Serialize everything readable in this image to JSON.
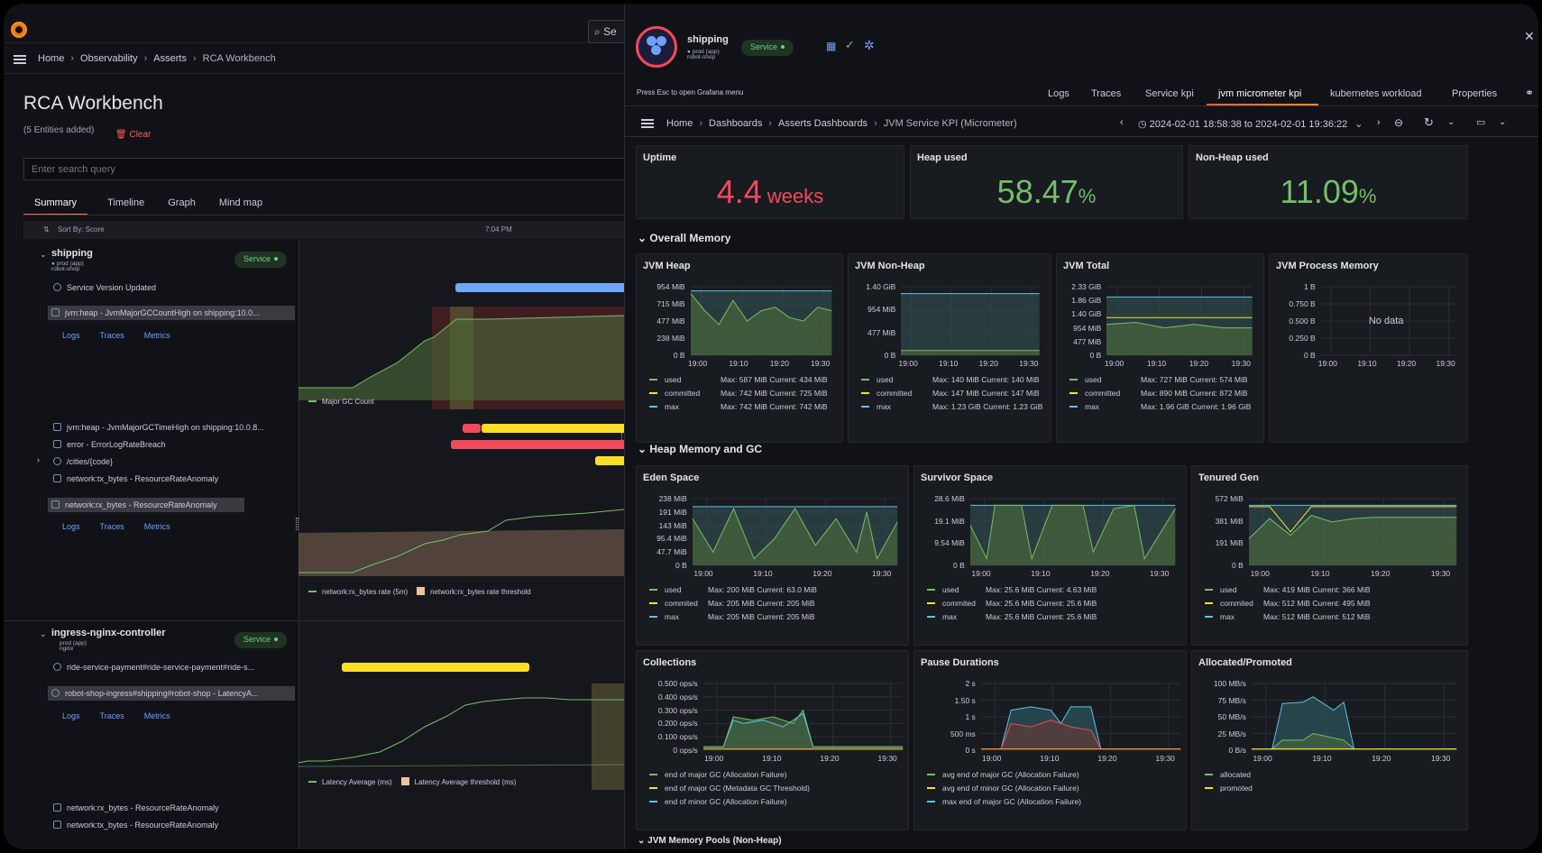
{
  "left": {
    "search_button_label": "Se",
    "breadcrumbs": [
      "Home",
      "Observability",
      "Asserts",
      "RCA Workbench"
    ],
    "page_title": "RCA Workbench",
    "entities_added": "(5 Entities added)",
    "clear_label": "Clear",
    "search_placeholder": "Enter search query",
    "tabs": [
      "Summary",
      "Timeline",
      "Graph",
      "Mind map"
    ],
    "sort_label": "Sort By: Score",
    "time_label": "7:04 PM",
    "groups": [
      {
        "name": "shipping",
        "env": "prod (app)",
        "namespace": "robot-shop",
        "badge": "Service",
        "rows": [
          "Service Version Updated",
          "jvm:heap - JvmMajorGCCountHigh on shipping:10.0...",
          "jvm:heap - JvmMajorGCTimeHigh on shipping:10.0.8...",
          "error - ErrorLogRateBreach",
          "/cities/{code}",
          "network:tx_bytes - ResourceRateAnomaly",
          "network:rx_bytes - ResourceRateAnomaly"
        ],
        "legend1": "Major GC Count",
        "legend2a": "network:rx_bytes rate (5m)",
        "legend2b": "network:rx_bytes rate threshold"
      },
      {
        "name": "ingress-nginx-controller",
        "env": "prod (app)",
        "namespace": "nginx",
        "badge": "Service",
        "rows": [
          "ride-service-payment#ride-service-payment#ride-s...",
          "robot-shop-ingress#shipping#robot-shop - LatencyA...",
          "network:rx_bytes - ResourceRateAnomaly",
          "network:tx_bytes - ResourceRateAnomaly"
        ],
        "legend_a": "Latency Average (ms)",
        "legend_b": "Latency Average threshold (ms)"
      }
    ],
    "links": [
      "Logs",
      "Traces",
      "Metrics"
    ]
  },
  "right": {
    "service_name": "shipping",
    "service_env": "prod (app)",
    "service_ns": "robot-shop",
    "service_badge": "Service",
    "esc_hint": "Press Esc to open Grafana menu",
    "tabs": [
      "Logs",
      "Traces",
      "Service kpi",
      "jvm micrometer kpi",
      "kubernetes workload",
      "Properties"
    ],
    "breadcrumbs": [
      "Home",
      "Dashboards",
      "Asserts Dashboards",
      "JVM Service KPI (Micrometer)"
    ],
    "time_range": "2024-02-01 18:58:38 to 2024-02-01 19:36:22",
    "stats": [
      {
        "title": "Uptime",
        "value": "4.4",
        "unit": " weeks",
        "color": "#f2495c"
      },
      {
        "title": "Heap used",
        "value": "58.47",
        "unit": "%",
        "color": "#73bf69"
      },
      {
        "title": "Non-Heap used",
        "value": "11.09",
        "unit": "%",
        "color": "#73bf69"
      }
    ],
    "sections": [
      "Overall Memory",
      "Heap Memory and GC",
      "JVM Memory Pools (Non-Heap)"
    ],
    "no_data": "No data",
    "panels": [
      {
        "title": "JVM Heap",
        "yticks": [
          "954 MiB",
          "715 MiB",
          "477 MiB",
          "238 MiB",
          "0 B"
        ],
        "xticks": [
          "19:00",
          "19:10",
          "19:20",
          "19:30"
        ],
        "legend": [
          {
            "name": "used",
            "stats": "Max: 587 MiB  Current: 434 MiB",
            "color": "#73bf69"
          },
          {
            "name": "committed",
            "stats": "Max: 742 MiB  Current: 725 MiB",
            "color": "#fade2a"
          },
          {
            "name": "max",
            "stats": "Max: 742 MiB  Current: 742 MiB",
            "color": "#5ac4e6"
          }
        ]
      },
      {
        "title": "JVM Non-Heap",
        "yticks": [
          "1.40 GiB",
          "954 MiB",
          "477 MiB",
          "0 B"
        ],
        "xticks": [
          "19:00",
          "19:10",
          "19:20",
          "19:30"
        ],
        "legend": [
          {
            "name": "used",
            "stats": "Max: 140 MiB  Current: 140 MiB",
            "color": "#73bf69"
          },
          {
            "name": "committed",
            "stats": "Max: 147 MiB  Current: 147 MiB",
            "color": "#fade2a"
          },
          {
            "name": "max",
            "stats": "Max: 1.23 GiB  Current: 1.23 GiB",
            "color": "#5ac4e6"
          }
        ]
      },
      {
        "title": "JVM Total",
        "yticks": [
          "2.33 GiB",
          "1.86 GiB",
          "1.40 GiB",
          "954 MiB",
          "477 MiB",
          "0 B"
        ],
        "xticks": [
          "19:00",
          "19:10",
          "19:20",
          "19:30"
        ],
        "legend": [
          {
            "name": "used",
            "stats": "Max: 727 MiB  Current: 574 MiB",
            "color": "#73bf69"
          },
          {
            "name": "committed",
            "stats": "Max: 890 MiB  Current: 872 MiB",
            "color": "#fade2a"
          },
          {
            "name": "max",
            "stats": "Max: 1.96 GiB  Current: 1.96 GiB",
            "color": "#5ac4e6"
          }
        ]
      },
      {
        "title": "JVM Process Memory",
        "yticks": [
          "1 B",
          "0.750 B",
          "0.500 B",
          "0.250 B",
          "0 B"
        ],
        "xticks": [
          "19:00",
          "19:10",
          "19:20",
          "19:30"
        ],
        "legend": []
      },
      {
        "title": "Eden Space",
        "yticks": [
          "238 MiB",
          "191 MiB",
          "143 MiB",
          "95.4 MiB",
          "47.7 MiB",
          "0 B"
        ],
        "xticks": [
          "19:00",
          "19:10",
          "19:20",
          "19:30"
        ],
        "legend": [
          {
            "name": "used",
            "stats": "Max: 200 MiB  Current: 63.0 MiB",
            "color": "#73bf69"
          },
          {
            "name": "commited",
            "stats": "Max: 205 MiB  Current: 205 MiB",
            "color": "#fade2a"
          },
          {
            "name": "max",
            "stats": "Max: 205 MiB  Current: 205 MiB",
            "color": "#5ac4e6"
          }
        ]
      },
      {
        "title": "Survivor Space",
        "yticks": [
          "28.6 MiB",
          "19.1 MiB",
          "9.54 MiB",
          "0 B"
        ],
        "xticks": [
          "19:00",
          "19:10",
          "19:20",
          "19:30"
        ],
        "legend": [
          {
            "name": "used",
            "stats": "Max: 25.6 MiB  Current: 4.63 MiB",
            "color": "#73bf69"
          },
          {
            "name": "commited",
            "stats": "Max: 25.6 MiB  Current: 25.6 MiB",
            "color": "#fade2a"
          },
          {
            "name": "max",
            "stats": "Max: 25.6 MiB  Current: 25.6 MiB",
            "color": "#5ac4e6"
          }
        ]
      },
      {
        "title": "Tenured Gen",
        "yticks": [
          "572 MiB",
          "381 MiB",
          "191 MiB",
          "0 B"
        ],
        "xticks": [
          "19:00",
          "19:10",
          "19:20",
          "19:30"
        ],
        "legend": [
          {
            "name": "used",
            "stats": "Max: 419 MiB  Current: 366 MiB",
            "color": "#73bf69"
          },
          {
            "name": "commited",
            "stats": "Max: 512 MiB  Current: 495 MiB",
            "color": "#fade2a"
          },
          {
            "name": "max",
            "stats": "Max: 512 MiB  Current: 512 MiB",
            "color": "#5ac4e6"
          }
        ]
      },
      {
        "title": "Collections",
        "yticks": [
          "0.500 ops/s",
          "0.400 ops/s",
          "0.300 ops/s",
          "0.200 ops/s",
          "0.100 ops/s",
          "0 ops/s"
        ],
        "xticks": [
          "19:00",
          "19:10",
          "19:20",
          "19:30"
        ],
        "legend": [
          {
            "name": "end of major GC (Allocation Failure)",
            "stats": "",
            "color": "#73bf69"
          },
          {
            "name": "end of major GC (Metadata GC Threshold)",
            "stats": "",
            "color": "#fade2a"
          },
          {
            "name": "end of minor GC (Allocation Failure)",
            "stats": "",
            "color": "#5ac4e6"
          }
        ]
      },
      {
        "title": "Pause Durations",
        "yticks": [
          "2 s",
          "1.50 s",
          "1 s",
          "500 ms",
          "0 s"
        ],
        "xticks": [
          "19:00",
          "19:10",
          "19:20",
          "19:30"
        ],
        "legend": [
          {
            "name": "avg end of major GC (Allocation Failure)",
            "stats": "",
            "color": "#73bf69"
          },
          {
            "name": "avg end of minor GC (Allocation Failure)",
            "stats": "",
            "color": "#fade2a"
          },
          {
            "name": "max end of major GC (Allocation Failure)",
            "stats": "",
            "color": "#5ac4e6"
          }
        ]
      },
      {
        "title": "Allocated/Promoted",
        "yticks": [
          "100 MB/s",
          "75 MB/s",
          "50 MB/s",
          "25 MB/s",
          "0 B/s"
        ],
        "xticks": [
          "19:00",
          "19:10",
          "19:20",
          "19:30"
        ],
        "legend": [
          {
            "name": "allocated",
            "stats": "",
            "color": "#73bf69"
          },
          {
            "name": "promoted",
            "stats": "",
            "color": "#fade2a"
          }
        ]
      }
    ]
  },
  "colors": {
    "green": "#73bf69",
    "yellow": "#fade2a",
    "blue": "#5ac4e6",
    "red": "#f2495c",
    "orange_tab": "#f55f3e",
    "link": "#6e9fff"
  }
}
